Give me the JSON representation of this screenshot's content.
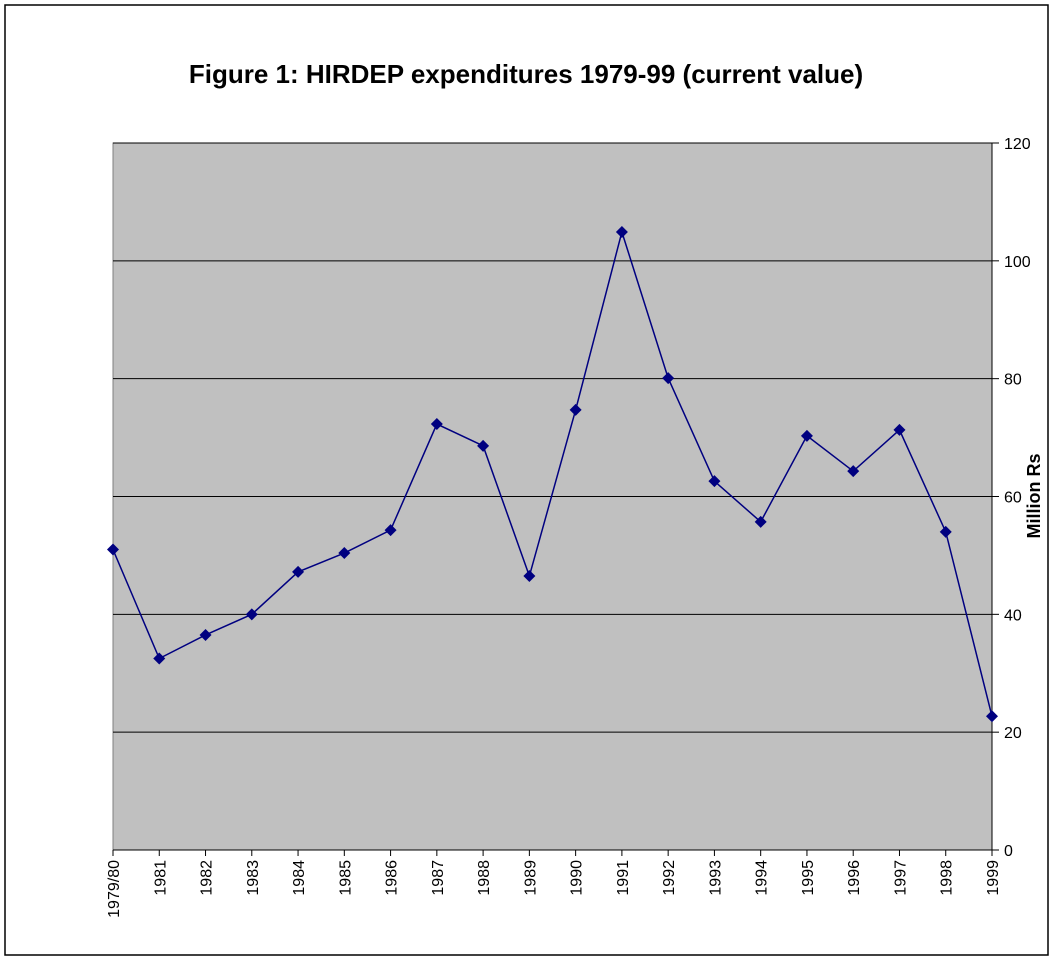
{
  "chart_data": {
    "type": "line",
    "title": "Figure 1: HIRDEP expenditures 1979-99 (current value)",
    "y_axis_label": "Million Rs",
    "categories": [
      "1979/80",
      "1981",
      "1982",
      "1983",
      "1984",
      "1985",
      "1986",
      "1987",
      "1988",
      "1989",
      "1990",
      "1991",
      "1992",
      "1993",
      "1994",
      "1995",
      "1996",
      "1997",
      "1998",
      "1999"
    ],
    "series": [
      {
        "name": "HIRDEP expenditures",
        "color": "#000080",
        "values": [
          51,
          32.5,
          36.5,
          40,
          47.2,
          50.4,
          54.3,
          72.3,
          68.6,
          46.5,
          74.7,
          104.9,
          80.1,
          62.6,
          55.7,
          70.3,
          64.3,
          71.3,
          54,
          22.7
        ]
      }
    ],
    "ylim": [
      0,
      120
    ],
    "yticks": [
      0,
      20,
      40,
      60,
      80,
      100,
      120
    ],
    "grid": true,
    "y_axis_side": "right",
    "plot_background": "#c0c0c0"
  }
}
